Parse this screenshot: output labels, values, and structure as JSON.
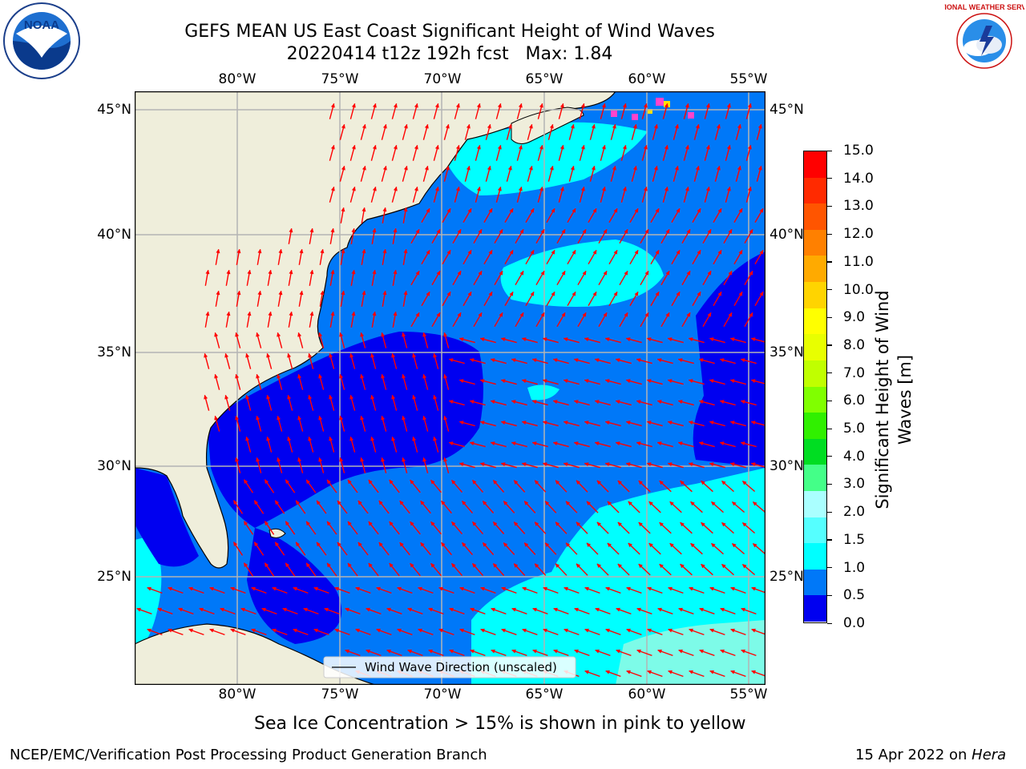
{
  "header": {
    "title_line1": "GEFS MEAN US East Coast Significant Height of Wind Waves",
    "title_line2": "20220414 t12z 192h fcst   Max: 1.84"
  },
  "logos": {
    "left_text": "NOAA",
    "right_text": "NATIONAL WEATHER SERVICE"
  },
  "map": {
    "lon_labels": [
      "80°W",
      "75°W",
      "70°W",
      "65°W",
      "60°W",
      "55°W"
    ],
    "lat_labels": [
      "45°N",
      "40°N",
      "35°N",
      "30°N",
      "25°N"
    ],
    "legend_label": "Wind Wave Direction (unscaled)",
    "colors": {
      "land": "#efeedb",
      "level_0_05": "#0000f0",
      "level_05_10": "#0078f8",
      "level_10_15": "#00ffff",
      "level_15_20": "#7dfbe8",
      "arrow": "#ff0000",
      "grid": "#b4b4b4",
      "ice": "#ff44cc"
    }
  },
  "colorbar": {
    "label": "Significant Height of Wind Waves [m]",
    "ticks": [
      "15.0",
      "14.0",
      "13.0",
      "12.0",
      "11.0",
      "10.0",
      "9.0",
      "8.0",
      "7.0",
      "6.0",
      "5.0",
      "4.0",
      "3.0",
      "2.0",
      "1.5",
      "1.0",
      "0.5",
      "0.0"
    ],
    "colors": [
      "#ff0000",
      "#ff2a00",
      "#ff5500",
      "#ff8000",
      "#ffaa00",
      "#ffd400",
      "#ffff00",
      "#e8ff00",
      "#c0ff00",
      "#80ff00",
      "#30f000",
      "#00dd22",
      "#44ff88",
      "#aaffff",
      "#55ffff",
      "#00ffff",
      "#0078f8",
      "#0000f0"
    ]
  },
  "caption": "Sea Ice Concentration > 15% is shown in pink to yellow",
  "footer": {
    "left": "NCEP/EMC/Verification Post Processing Product Generation Branch",
    "right_prefix": "15 Apr 2022 on ",
    "right_host": "Hera"
  }
}
